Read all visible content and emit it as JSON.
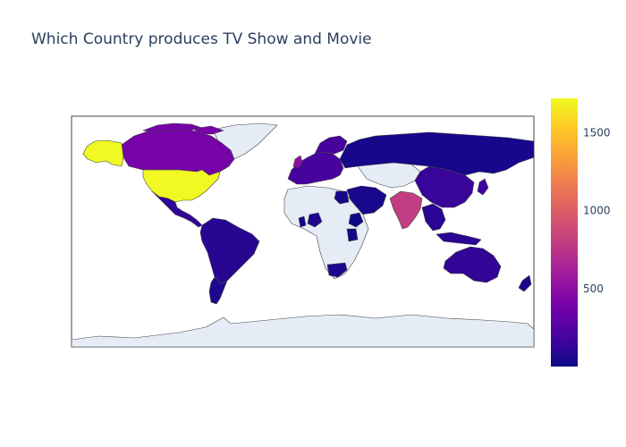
{
  "title": "Which Country produces TV Show and Movie",
  "colors": {
    "land_nodata": "#e5ecf6",
    "ocean": "#ffffff",
    "border": "#444444",
    "scale": [
      "#0d0887",
      "#46039f",
      "#7201a8",
      "#9c179e",
      "#bd3786",
      "#d8576b",
      "#ed7953",
      "#fb9f3a",
      "#fdca26",
      "#f0f921"
    ]
  },
  "colorbar": {
    "min": 1,
    "max": 1720,
    "ticks": [
      {
        "value": 500,
        "label": "500"
      },
      {
        "value": 1000,
        "label": "1000"
      },
      {
        "value": 1500,
        "label": "1500"
      }
    ]
  },
  "regions": [
    {
      "name": "United States",
      "value": 1720
    },
    {
      "name": "Alaska",
      "value": 1720
    },
    {
      "name": "Canada",
      "value": 400
    },
    {
      "name": "Mexico",
      "value": 120
    },
    {
      "name": "South America",
      "value": 90
    },
    {
      "name": "Argentina",
      "value": 60
    },
    {
      "name": "Europe",
      "value": 200
    },
    {
      "name": "United Kingdom",
      "value": 500
    },
    {
      "name": "Russia",
      "value": 30
    },
    {
      "name": "India",
      "value": 800
    },
    {
      "name": "China",
      "value": 150
    },
    {
      "name": "Southeast Asia",
      "value": 100
    },
    {
      "name": "Japan",
      "value": 180
    },
    {
      "name": "Middle East",
      "value": 40
    },
    {
      "name": "Australia",
      "value": 120
    },
    {
      "name": "New Zealand",
      "value": 40
    },
    {
      "name": "South Africa",
      "value": 50
    },
    {
      "name": "Kenya",
      "value": 20
    },
    {
      "name": "Egypt",
      "value": 30
    },
    {
      "name": "Nigeria",
      "value": 60
    },
    {
      "name": "Ghana",
      "value": 10
    },
    {
      "name": "Ethiopia",
      "value": 10
    },
    {
      "name": "Greenland",
      "value": null
    },
    {
      "name": "Africa (rest)",
      "value": null
    },
    {
      "name": "Central Asia",
      "value": null
    },
    {
      "name": "Antarctica",
      "value": null
    }
  ]
}
